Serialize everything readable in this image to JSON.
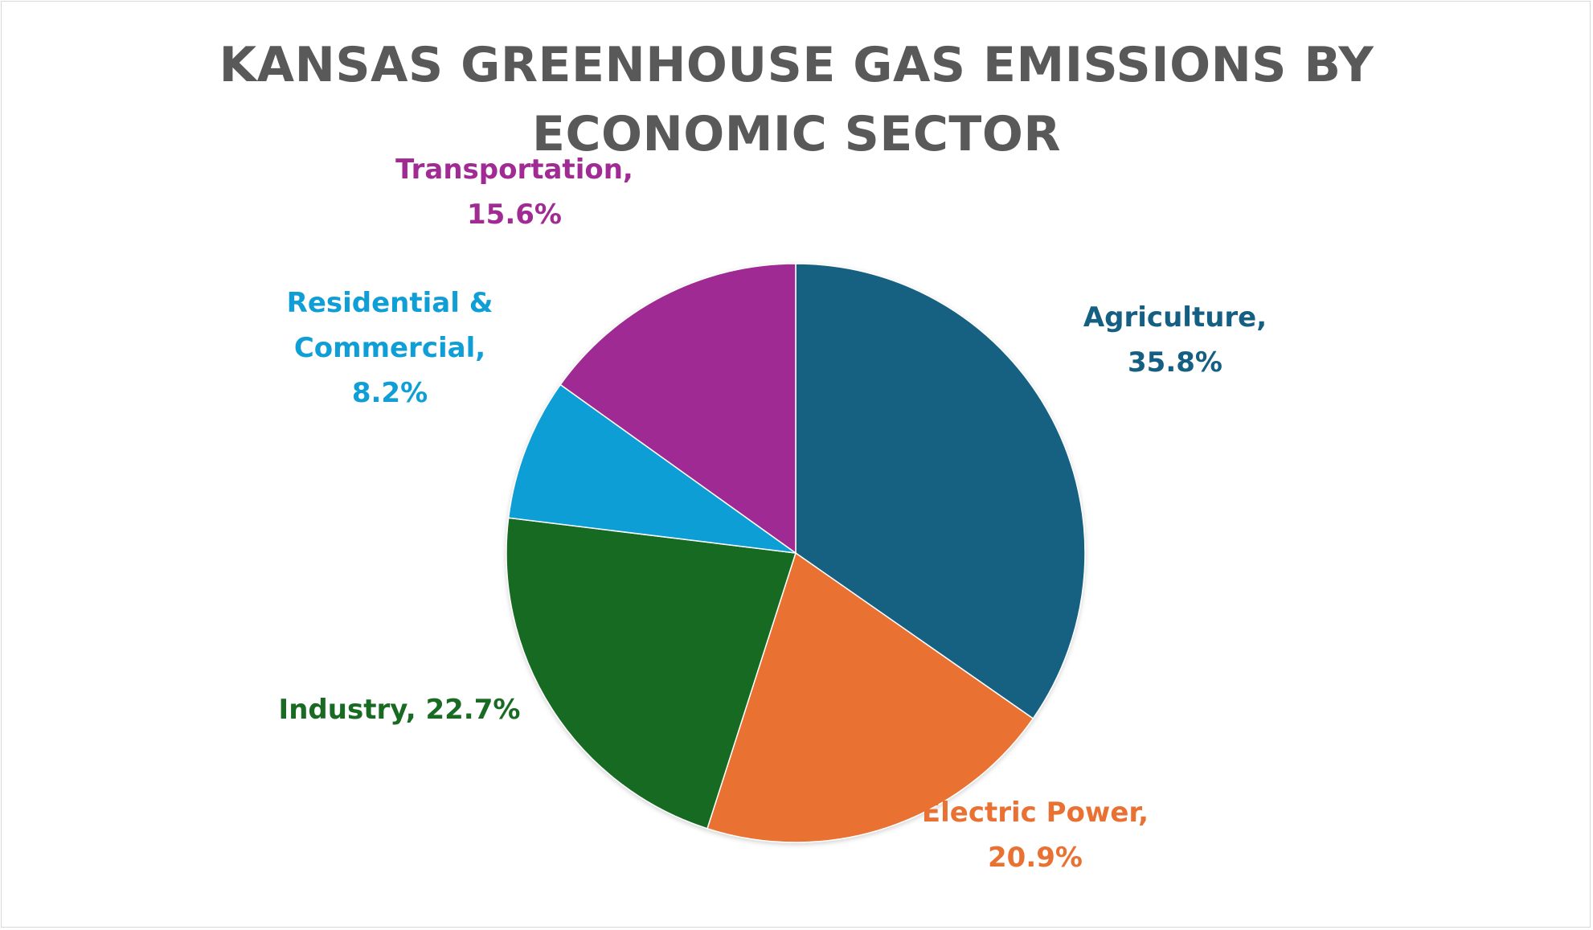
{
  "chart_data": {
    "type": "pie",
    "title_lines": [
      "KANSAS GREENHOUSE GAS EMISSIONS BY",
      "ECONOMIC SECTOR"
    ],
    "slices": [
      {
        "name": "Agriculture",
        "value": 35.8,
        "color": "#156082",
        "label_lines": [
          "Agriculture,",
          "35.8%"
        ]
      },
      {
        "name": "Electric Power",
        "value": 20.9,
        "color": "#E97132",
        "label_lines": [
          "Electric Power,",
          "20.9%"
        ]
      },
      {
        "name": "Industry",
        "value": 22.7,
        "color": "#196B24",
        "label_lines": [
          "Industry, 22.7%"
        ]
      },
      {
        "name": "Residential & Commercial",
        "value": 8.2,
        "color": "#0F9ED5",
        "label_lines": [
          "Residential &",
          "Commercial,",
          "8.2%"
        ]
      },
      {
        "name": "Transportation",
        "value": 15.6,
        "color": "#A02B93",
        "label_lines": [
          "Transportation,",
          "15.6%"
        ]
      }
    ],
    "start_angle_deg": 0,
    "direction": "clockwise",
    "legend": "none",
    "data_labels": "outside"
  }
}
